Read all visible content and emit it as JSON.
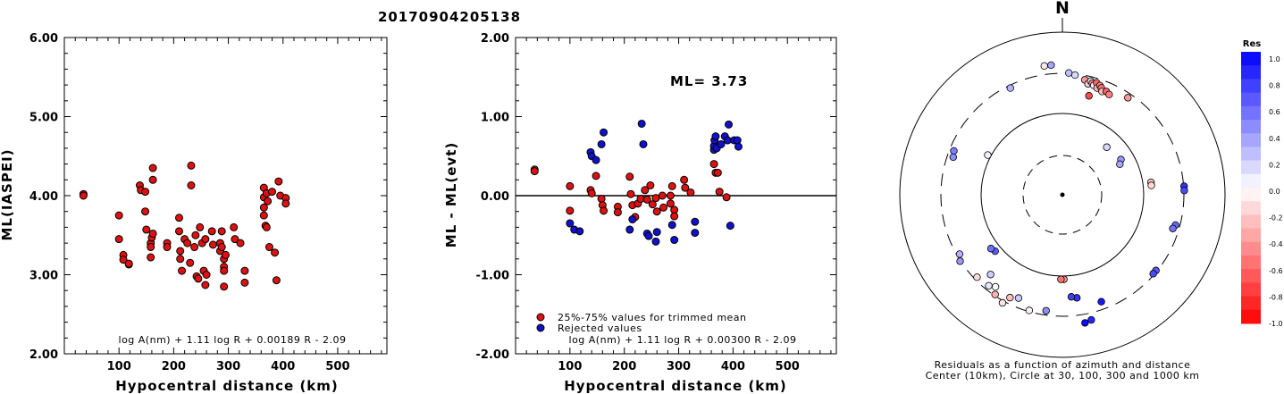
{
  "title": "20170904205138",
  "chart_data": [
    {
      "type": "scatter",
      "xlabel": "Hypocentral distance (km)",
      "ylabel": "ML(IASPEI)",
      "xlim": [
        0,
        590
      ],
      "ylim": [
        2.0,
        6.0
      ],
      "xticks": [
        "100",
        "200",
        "300",
        "400",
        "500"
      ],
      "yticks": [
        "2.00",
        "3.00",
        "4.00",
        "5.00",
        "6.00"
      ],
      "formula": "log A(nm) + 1.11 log R + 0.00189 R - 2.09",
      "series": [
        {
          "color": "#dd1111",
          "points": [
            [
              35,
              4.02
            ],
            [
              35,
              4.0
            ],
            [
              100,
              3.75
            ],
            [
              100,
              3.45
            ],
            [
              108,
              3.25
            ],
            [
              108,
              3.19
            ],
            [
              118,
              3.13
            ],
            [
              118,
              3.14
            ],
            [
              138,
              4.13
            ],
            [
              140,
              4.07
            ],
            [
              148,
              4.05
            ],
            [
              148,
              3.8
            ],
            [
              150,
              3.57
            ],
            [
              158,
              3.4
            ],
            [
              158,
              3.35
            ],
            [
              158,
              3.22
            ],
            [
              160,
              3.47
            ],
            [
              162,
              3.52
            ],
            [
              162,
              4.2
            ],
            [
              162,
              4.35
            ],
            [
              188,
              3.4
            ],
            [
              188,
              3.35
            ],
            [
              210,
              3.72
            ],
            [
              210,
              3.55
            ],
            [
              212,
              3.3
            ],
            [
              212,
              3.2
            ],
            [
              215,
              3.05
            ],
            [
              220,
              3.45
            ],
            [
              225,
              3.4
            ],
            [
              230,
              3.15
            ],
            [
              232,
              4.38
            ],
            [
              232,
              4.13
            ],
            [
              238,
              3.35
            ],
            [
              240,
              3.5
            ],
            [
              242,
              2.98
            ],
            [
              245,
              2.95
            ],
            [
              248,
              3.6
            ],
            [
              252,
              3.4
            ],
            [
              255,
              3.05
            ],
            [
              258,
              3.45
            ],
            [
              258,
              2.87
            ],
            [
              260,
              3.0
            ],
            [
              270,
              3.55
            ],
            [
              272,
              3.38
            ],
            [
              285,
              3.4
            ],
            [
              285,
              3.3
            ],
            [
              288,
              3.55
            ],
            [
              288,
              3.35
            ],
            [
              292,
              3.2
            ],
            [
              292,
              3.1
            ],
            [
              292,
              3.05
            ],
            [
              292,
              2.85
            ],
            [
              295,
              3.25
            ],
            [
              310,
              3.6
            ],
            [
              312,
              3.45
            ],
            [
              322,
              3.4
            ],
            [
              330,
              3.05
            ],
            [
              330,
              2.9
            ],
            [
              365,
              4.1
            ],
            [
              365,
              3.98
            ],
            [
              365,
              3.85
            ],
            [
              365,
              3.75
            ],
            [
              368,
              3.62
            ],
            [
              370,
              4.03
            ],
            [
              370,
              3.6
            ],
            [
              372,
              3.93
            ],
            [
              375,
              3.35
            ],
            [
              380,
              4.05
            ],
            [
              385,
              3.28
            ],
            [
              388,
              2.93
            ],
            [
              392,
              4.18
            ],
            [
              395,
              4.0
            ],
            [
              405,
              3.97
            ],
            [
              405,
              3.9
            ]
          ]
        }
      ]
    },
    {
      "type": "scatter",
      "xlabel": "Hypocentral distance (km)",
      "ylabel": "ML - ML(evt)",
      "xlim": [
        0,
        590
      ],
      "ylim": [
        -2.0,
        2.0
      ],
      "xticks": [
        "100",
        "200",
        "300",
        "400",
        "500"
      ],
      "yticks": [
        "-2.00",
        "-1.00",
        "0.00",
        "1.00",
        "2.00"
      ],
      "reference_line": 0.0,
      "annotation": "ML=  3.73",
      "formula": "log A(nm) + 1.11 log R + 0.00300 R - 2.09",
      "legend": [
        "25%-75% values for trimmed mean",
        "Rejected values"
      ],
      "series": [
        {
          "name": "25%-75% values for trimmed mean",
          "color": "#dd1111",
          "points": [
            [
              35,
              0.33
            ],
            [
              35,
              0.31
            ],
            [
              100,
              0.12
            ],
            [
              100,
              -0.19
            ],
            [
              138,
              0.07
            ],
            [
              140,
              0.03
            ],
            [
              148,
              0.25
            ],
            [
              158,
              -0.04
            ],
            [
              160,
              -0.12
            ],
            [
              162,
              -0.19
            ],
            [
              188,
              -0.14
            ],
            [
              188,
              -0.21
            ],
            [
              210,
              0.24
            ],
            [
              212,
              0.02
            ],
            [
              215,
              -0.12
            ],
            [
              220,
              -0.27
            ],
            [
              225,
              -0.1
            ],
            [
              230,
              -0.04
            ],
            [
              238,
              0.07
            ],
            [
              242,
              -0.05
            ],
            [
              248,
              0.13
            ],
            [
              252,
              -0.11
            ],
            [
              258,
              -0.03
            ],
            [
              260,
              -0.2
            ],
            [
              270,
              0.0
            ],
            [
              272,
              -0.15
            ],
            [
              285,
              0.0
            ],
            [
              285,
              -0.1
            ],
            [
              288,
              0.12
            ],
            [
              292,
              -0.18
            ],
            [
              292,
              -0.26
            ],
            [
              310,
              0.2
            ],
            [
              312,
              0.1
            ],
            [
              322,
              0.04
            ],
            [
              365,
              0.4
            ],
            [
              368,
              0.29
            ],
            [
              372,
              0.29
            ],
            [
              375,
              0.05
            ],
            [
              388,
              -0.02
            ]
          ]
        },
        {
          "name": "Rejected values",
          "color": "#1111cc",
          "points": [
            [
              100,
              -0.35
            ],
            [
              108,
              -0.43
            ],
            [
              118,
              -0.45
            ],
            [
              138,
              0.55
            ],
            [
              140,
              0.5
            ],
            [
              148,
              0.45
            ],
            [
              158,
              0.65
            ],
            [
              162,
              0.8
            ],
            [
              210,
              -0.43
            ],
            [
              215,
              -0.3
            ],
            [
              232,
              0.91
            ],
            [
              235,
              0.65
            ],
            [
              242,
              -0.48
            ],
            [
              245,
              -0.51
            ],
            [
              258,
              -0.58
            ],
            [
              260,
              -0.46
            ],
            [
              288,
              -0.37
            ],
            [
              292,
              -0.56
            ],
            [
              330,
              -0.33
            ],
            [
              330,
              -0.47
            ],
            [
              365,
              0.58
            ],
            [
              365,
              0.63
            ],
            [
              366,
              0.7
            ],
            [
              368,
              0.75
            ],
            [
              370,
              0.6
            ],
            [
              378,
              0.65
            ],
            [
              385,
              0.75
            ],
            [
              390,
              0.7
            ],
            [
              392,
              0.9
            ],
            [
              395,
              -0.38
            ],
            [
              402,
              0.7
            ],
            [
              408,
              0.7
            ],
            [
              410,
              0.62
            ]
          ]
        }
      ]
    }
  ],
  "polar": {
    "north_label": "N",
    "caption_line1": "Residuals as a function of azimuth and distance",
    "caption_line2": "Center (10km), Circle at 30, 100, 300 and 1000 km",
    "colorbar_title": "Res",
    "colorbar_labels": [
      "1.0",
      "0.8",
      "0.6",
      "0.4",
      "0.2",
      "0.0",
      "-0.2",
      "-0.4",
      "-0.6",
      "-0.8",
      "-1.0"
    ],
    "stations": [
      {
        "az": 352,
        "r": 0.8,
        "res": -0.1
      },
      {
        "az": 355,
        "r": 0.8,
        "res": 0.35
      },
      {
        "az": 3,
        "r": 0.75,
        "res": 0.25
      },
      {
        "az": 6,
        "r": 0.74,
        "res": 0.15
      },
      {
        "az": 11,
        "r": 0.72,
        "res": -0.4
      },
      {
        "az": 13,
        "r": 0.7,
        "res": -0.2
      },
      {
        "az": 14,
        "r": 0.72,
        "res": 0.1
      },
      {
        "az": 15,
        "r": 0.71,
        "res": -0.5
      },
      {
        "az": 16,
        "r": 0.7,
        "res": 0.05
      },
      {
        "az": 17,
        "r": 0.72,
        "res": -0.6
      },
      {
        "az": 18,
        "r": 0.69,
        "res": -0.3
      },
      {
        "az": 19,
        "r": 0.71,
        "res": -0.45
      },
      {
        "az": 20,
        "r": 0.7,
        "res": -0.55
      },
      {
        "az": 21,
        "r": 0.68,
        "res": -0.25
      },
      {
        "az": 23,
        "r": 0.69,
        "res": -0.6
      },
      {
        "az": 25,
        "r": 0.68,
        "res": -0.5
      },
      {
        "az": 15,
        "r": 0.63,
        "res": -0.7
      },
      {
        "az": 34,
        "r": 0.72,
        "res": -0.4
      },
      {
        "az": 334,
        "r": 0.73,
        "res": 0.3
      },
      {
        "az": 298,
        "r": 0.52,
        "res": 0.05
      },
      {
        "az": 292,
        "r": 0.72,
        "res": 0.5
      },
      {
        "az": 289,
        "r": 0.71,
        "res": 0.45
      },
      {
        "az": 43,
        "r": 0.4,
        "res": 0.15
      },
      {
        "az": 59,
        "r": 0.42,
        "res": 0.4
      },
      {
        "az": 62,
        "r": 0.4,
        "res": 0.35
      },
      {
        "az": 82,
        "r": 0.55,
        "res": -0.25
      },
      {
        "az": 84,
        "r": 0.55,
        "res": -0.15
      },
      {
        "az": 86,
        "r": 0.75,
        "res": 0.8
      },
      {
        "az": 88,
        "r": 0.75,
        "res": 0.7
      },
      {
        "az": 105,
        "r": 0.72,
        "res": 0.6
      },
      {
        "az": 107,
        "r": 0.71,
        "res": 0.55
      },
      {
        "az": 129,
        "r": 0.74,
        "res": 0.65
      },
      {
        "az": 131,
        "r": 0.74,
        "res": 0.7
      },
      {
        "az": 160,
        "r": 0.7,
        "res": 0.9
      },
      {
        "az": 167,
        "r": 0.79,
        "res": 0.85
      },
      {
        "az": 170,
        "r": 0.8,
        "res": 0.95
      },
      {
        "az": 172,
        "r": 0.64,
        "res": 0.8
      },
      {
        "az": 175,
        "r": 0.63,
        "res": 0.75
      },
      {
        "az": 179,
        "r": 0.52,
        "res": -0.45
      },
      {
        "az": 181,
        "r": 0.52,
        "res": -0.55
      },
      {
        "az": 188,
        "r": 0.72,
        "res": 0.45
      },
      {
        "az": 196,
        "r": 0.74,
        "res": -0.05
      },
      {
        "az": 203,
        "r": 0.69,
        "res": 0.2
      },
      {
        "az": 207,
        "r": 0.71,
        "res": -0.25
      },
      {
        "az": 209,
        "r": 0.76,
        "res": -0.1
      },
      {
        "az": 214,
        "r": 0.74,
        "res": -0.3
      },
      {
        "az": 216,
        "r": 0.7,
        "res": 0.0
      },
      {
        "az": 219,
        "r": 0.72,
        "res": 0.1
      },
      {
        "az": 222,
        "r": 0.66,
        "res": 0.2
      },
      {
        "az": 226,
        "r": 0.73,
        "res": -0.15
      },
      {
        "az": 230,
        "r": 0.54,
        "res": 0.65
      },
      {
        "az": 233,
        "r": 0.55,
        "res": 0.55
      },
      {
        "az": 237,
        "r": 0.75,
        "res": 0.4
      },
      {
        "az": 240,
        "r": 0.73,
        "res": 0.3
      }
    ]
  }
}
